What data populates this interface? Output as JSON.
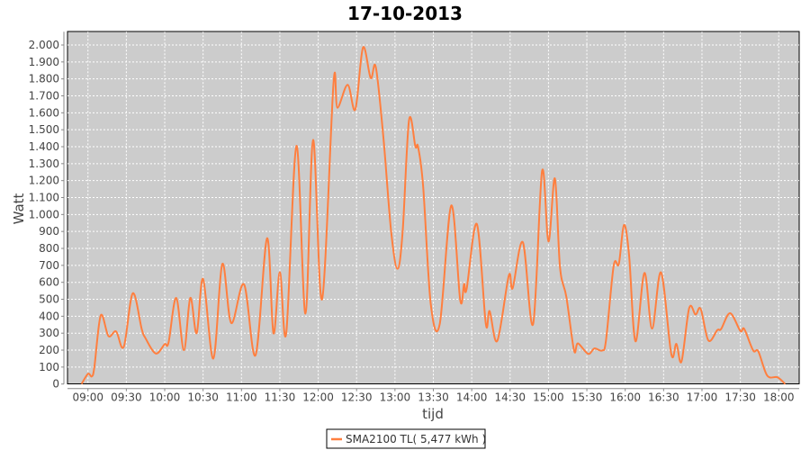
{
  "chart_data": {
    "type": "line",
    "title": "17-10-2013",
    "xlabel": "tijd",
    "ylabel": "Watt",
    "xlim": [
      "08:44",
      "18:16"
    ],
    "ylim": [
      0,
      2078
    ],
    "grid": true,
    "legend_position": "bottom",
    "plot_background": "#cccccc",
    "x_ticks": [
      "09:00",
      "09:30",
      "10:00",
      "10:30",
      "11:00",
      "11:30",
      "12:00",
      "12:30",
      "13:00",
      "13:30",
      "14:00",
      "14:30",
      "15:00",
      "15:30",
      "16:00",
      "16:30",
      "17:00",
      "17:30",
      "18:00"
    ],
    "y_ticks": [
      0,
      100,
      200,
      300,
      400,
      500,
      600,
      700,
      800,
      900,
      1000,
      1100,
      1200,
      1300,
      1400,
      1500,
      1600,
      1700,
      1800,
      1900,
      2000
    ],
    "y_tick_labels": [
      "0",
      "100",
      "200",
      "300",
      "400",
      "500",
      "600",
      "700",
      "800",
      "900",
      "1.000",
      "1.100",
      "1.200",
      "1.300",
      "1.400",
      "1.500",
      "1.600",
      "1.700",
      "1.800",
      "1.900",
      "2.000"
    ],
    "series": [
      {
        "name": "SMA2100 TL( 5,477 kWh )",
        "color": "#ff7f3f",
        "points": [
          [
            "08:55",
            0
          ],
          [
            "09:00",
            60
          ],
          [
            "09:03",
            45
          ],
          [
            "09:05",
            100
          ],
          [
            "09:10",
            405
          ],
          [
            "09:16",
            283
          ],
          [
            "09:22",
            310
          ],
          [
            "09:28",
            220
          ],
          [
            "09:35",
            535
          ],
          [
            "09:42",
            325
          ],
          [
            "09:45",
            270
          ],
          [
            "09:53",
            180
          ],
          [
            "10:00",
            235
          ],
          [
            "10:03",
            245
          ],
          [
            "10:09",
            508
          ],
          [
            "10:15",
            200
          ],
          [
            "10:20",
            508
          ],
          [
            "10:25",
            300
          ],
          [
            "10:30",
            620
          ],
          [
            "10:38",
            150
          ],
          [
            "10:45",
            708
          ],
          [
            "10:52",
            360
          ],
          [
            "11:02",
            588
          ],
          [
            "11:11",
            170
          ],
          [
            "11:20",
            860
          ],
          [
            "11:25",
            300
          ],
          [
            "11:30",
            660
          ],
          [
            "11:35",
            300
          ],
          [
            "11:43",
            1405
          ],
          [
            "11:50",
            415
          ],
          [
            "11:56",
            1440
          ],
          [
            "12:03",
            500
          ],
          [
            "12:12",
            1780
          ],
          [
            "12:15",
            1630
          ],
          [
            "12:23",
            1765
          ],
          [
            "12:29",
            1620
          ],
          [
            "12:35",
            1985
          ],
          [
            "12:41",
            1805
          ],
          [
            "12:45",
            1870
          ],
          [
            "12:51",
            1450
          ],
          [
            "12:57",
            900
          ],
          [
            "13:02",
            680
          ],
          [
            "13:06",
            900
          ],
          [
            "13:11",
            1557
          ],
          [
            "13:16",
            1400
          ],
          [
            "13:18",
            1400
          ],
          [
            "13:22",
            1168
          ],
          [
            "13:28",
            470
          ],
          [
            "13:35",
            354
          ],
          [
            "13:44",
            1053
          ],
          [
            "13:51",
            495
          ],
          [
            "13:54",
            590
          ],
          [
            "13:56",
            560
          ],
          [
            "14:04",
            944
          ],
          [
            "14:11",
            356
          ],
          [
            "14:14",
            430
          ],
          [
            "14:20",
            255
          ],
          [
            "14:29",
            640
          ],
          [
            "14:32",
            566
          ],
          [
            "14:40",
            836
          ],
          [
            "14:48",
            354
          ],
          [
            "14:55",
            1257
          ],
          [
            "15:00",
            841
          ],
          [
            "15:05",
            1213
          ],
          [
            "15:09",
            690
          ],
          [
            "15:14",
            513
          ],
          [
            "15:20",
            198
          ],
          [
            "15:23",
            240
          ],
          [
            "15:31",
            178
          ],
          [
            "15:36",
            210
          ],
          [
            "15:42",
            198
          ],
          [
            "15:45",
            260
          ],
          [
            "15:51",
            699
          ],
          [
            "15:55",
            708
          ],
          [
            "15:59",
            938
          ],
          [
            "16:03",
            761
          ],
          [
            "16:08",
            252
          ],
          [
            "16:15",
            655
          ],
          [
            "16:21",
            327
          ],
          [
            "16:28",
            658
          ],
          [
            "16:36",
            177
          ],
          [
            "16:40",
            237
          ],
          [
            "16:44",
            133
          ],
          [
            "16:50",
            448
          ],
          [
            "16:55",
            410
          ],
          [
            "16:59",
            443
          ],
          [
            "17:05",
            257
          ],
          [
            "17:12",
            318
          ],
          [
            "17:15",
            325
          ],
          [
            "17:22",
            418
          ],
          [
            "17:30",
            313
          ],
          [
            "17:33",
            325
          ],
          [
            "17:40",
            198
          ],
          [
            "17:44",
            193
          ],
          [
            "17:51",
            50
          ],
          [
            "17:59",
            40
          ],
          [
            "18:05",
            0
          ]
        ]
      }
    ]
  }
}
